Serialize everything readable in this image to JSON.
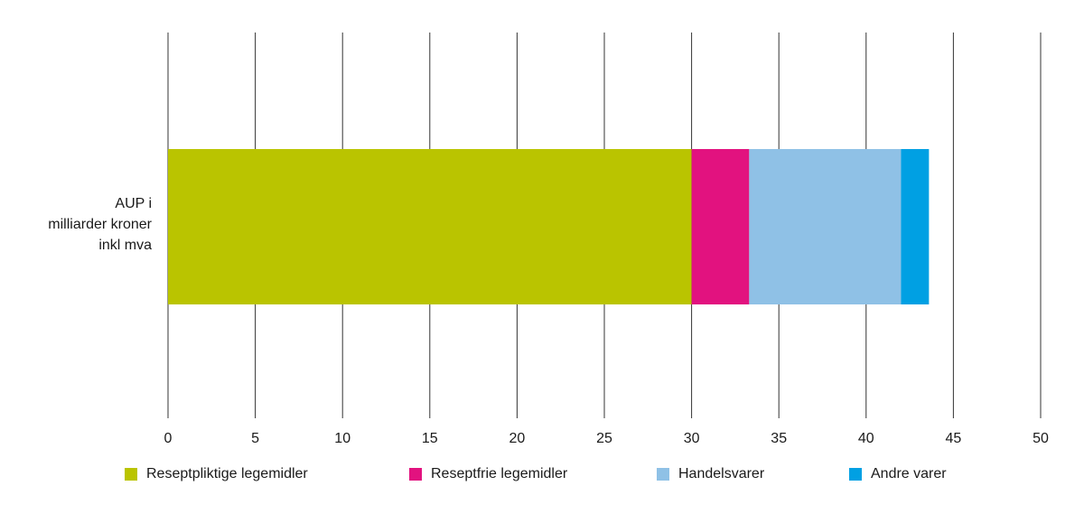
{
  "chart_data": {
    "type": "bar",
    "orientation": "horizontal",
    "stacked": true,
    "categories": [
      "AUP i milliarder kroner inkl mva"
    ],
    "category_label_lines": [
      "AUP i",
      "milliarder kroner",
      "inkl mva"
    ],
    "series": [
      {
        "name": "Reseptpliktige legemidler",
        "values": [
          30
        ],
        "color": "#bac400"
      },
      {
        "name": "Reseptfrie legemidler",
        "values": [
          3.3
        ],
        "color": "#e2127f"
      },
      {
        "name": "Handelsvarer",
        "values": [
          8.7
        ],
        "color": "#8fc1e6"
      },
      {
        "name": "Andre varer",
        "values": [
          1.6
        ],
        "color": "#00a0e3"
      }
    ],
    "xlim": [
      0,
      50
    ],
    "xticks": [
      "0",
      "5",
      "10",
      "15",
      "20",
      "25",
      "30",
      "35",
      "40",
      "45",
      "50"
    ],
    "grid": "vertical",
    "legend_position": "bottom",
    "title": "",
    "xlabel": "",
    "ylabel": ""
  }
}
